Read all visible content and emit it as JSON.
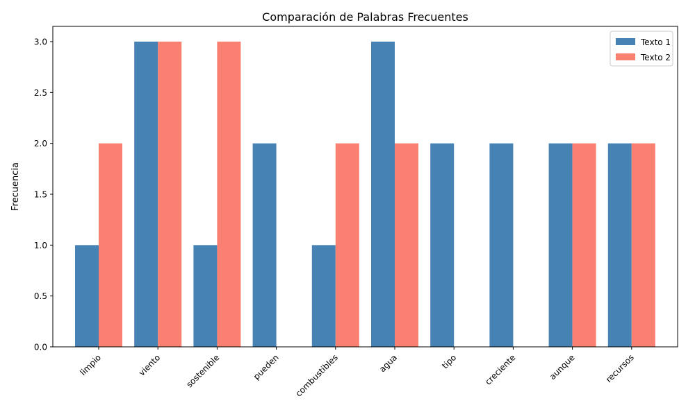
{
  "chart_data": {
    "type": "bar",
    "title": "Comparación de Palabras Frecuentes",
    "xlabel": "",
    "ylabel": "Frecuencia",
    "categories": [
      "limpio",
      "viento",
      "sostenible",
      "pueden",
      "combustibles",
      "agua",
      "tipo",
      "creciente",
      "aunque",
      "recursos"
    ],
    "series": [
      {
        "name": "Texto 1",
        "color": "#4682b4",
        "values": [
          1,
          3,
          1,
          2,
          1,
          3,
          2,
          2,
          2,
          2
        ]
      },
      {
        "name": "Texto 2",
        "color": "#fa8072",
        "values": [
          2,
          3,
          3,
          0,
          2,
          2,
          0,
          0,
          2,
          2
        ]
      }
    ],
    "ylim": [
      0,
      3.15
    ],
    "yticks": [
      "0.0",
      "0.5",
      "1.0",
      "1.5",
      "2.0",
      "2.5",
      "3.0"
    ],
    "grid": false,
    "legend_position": "upper right"
  }
}
